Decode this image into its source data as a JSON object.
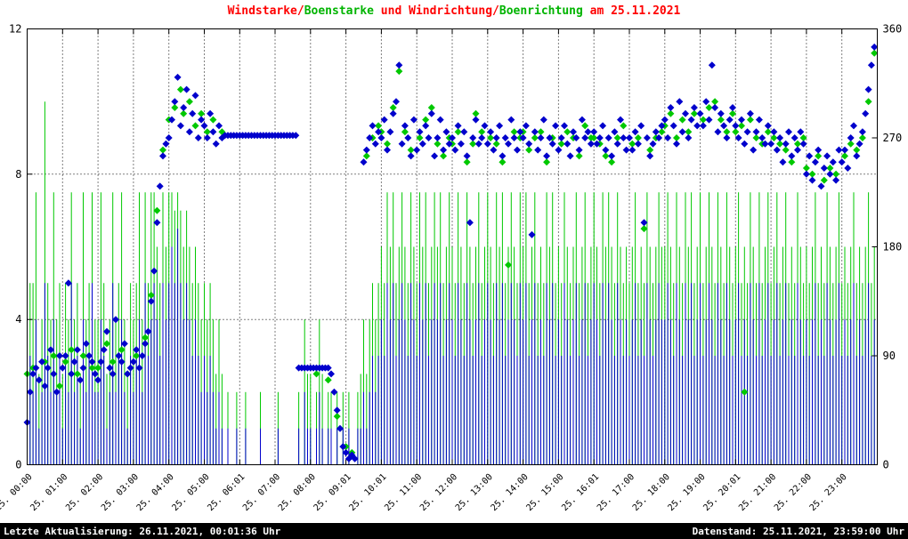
{
  "title_segments": [
    {
      "text": "Windstarke/",
      "color": "#ff0000"
    },
    {
      "text": "Boenstarke",
      "color": "#00b400"
    },
    {
      "text": " und Windrichtung/",
      "color": "#ff0000"
    },
    {
      "text": "Boenrichtung",
      "color": "#00b400"
    },
    {
      "text": " am 25.11.2021",
      "color": "#ff0000"
    }
  ],
  "footer": {
    "left": "Letzte Aktualisierung: 26.11.2021, 00:01:36 Uhr",
    "right": "Datenstand: 25.11.2021, 23:59:00 Uhr"
  },
  "chart_data": {
    "type": "scatter",
    "title": "Windstarke/Boenstarke und Windrichtung/Boenrichtung am 25.11.2021",
    "x_start_min": 0,
    "x_step_min": 5,
    "x_axis": {
      "hours": 24,
      "tick_labels": [
        "25. 00:00",
        "25. 01:00",
        "25. 02:00",
        "25. 03:00",
        "25. 04:00",
        "25. 05:00",
        "25. 06:01",
        "25. 07:00",
        "25. 08:00",
        "25. 09:01",
        "25. 10:01",
        "25. 11:00",
        "25. 12:00",
        "25. 13:00",
        "25. 14:00",
        "25. 15:00",
        "25. 16:01",
        "25. 17:00",
        "25. 18:00",
        "25. 19:00",
        "25. 20:01",
        "25. 21:00",
        "25. 22:00",
        "25. 23:00"
      ]
    },
    "left_axis": {
      "range": [
        0,
        12
      ],
      "ticks": [
        0,
        4,
        8,
        12
      ]
    },
    "right_axis": {
      "range": [
        0,
        360
      ],
      "ticks": [
        0,
        90,
        180,
        270,
        360
      ]
    },
    "grid": {
      "h_lines_left": [
        4,
        8
      ],
      "v_lines_every_hour": true
    },
    "legend_position": "none",
    "series": [
      {
        "name": "Boenstarke",
        "render": "impulse",
        "axis": "left",
        "color": "#00c800",
        "values": [
          4,
          5,
          5,
          7.5,
          2.5,
          4,
          10,
          5,
          4,
          7.5,
          4,
          5,
          2.5,
          5,
          4,
          7.5,
          4,
          5,
          2.5,
          7.5,
          4,
          5,
          7.5,
          4,
          4,
          7.5,
          5,
          2.5,
          4,
          7.5,
          4,
          5,
          7.5,
          4,
          2.5,
          5,
          4,
          5,
          7.5,
          4,
          7.5,
          5,
          7.5,
          7.5,
          6,
          5,
          7.5,
          6,
          7.5,
          7.5,
          7,
          7.5,
          7,
          6,
          7,
          6,
          5,
          6,
          5,
          4,
          5,
          4,
          5,
          4,
          2.5,
          4,
          2.5,
          0,
          2,
          0,
          0,
          2,
          0,
          0,
          2,
          0,
          0,
          0,
          0,
          2,
          0,
          0,
          0,
          0,
          0,
          2,
          0,
          0,
          0,
          0,
          0,
          0,
          2,
          0,
          4,
          2.5,
          2.5,
          0,
          2,
          4,
          2.5,
          0,
          2,
          2,
          0,
          2,
          0,
          2,
          0,
          2,
          0,
          0,
          2,
          2.5,
          4,
          2.5,
          4,
          5,
          4,
          5,
          6,
          5,
          7.5,
          6,
          7.5,
          5,
          6,
          7.5,
          6,
          5,
          7.5,
          6,
          5,
          7.5,
          6,
          7.5,
          5,
          6,
          7.5,
          6,
          7.5,
          5,
          6,
          7.5,
          6,
          5,
          7.5,
          6,
          5,
          7.5,
          6,
          5,
          6,
          7.5,
          5,
          6,
          7.5,
          6,
          5,
          7.5,
          6,
          7.5,
          5,
          6,
          7.5,
          6,
          5,
          7.5,
          6,
          7.5,
          5,
          6,
          7.5,
          5,
          6,
          5,
          7.5,
          6,
          7.5,
          5,
          6,
          5,
          7.5,
          6,
          5,
          6,
          7.5,
          5,
          6,
          7.5,
          5,
          6,
          7.5,
          6,
          5,
          7.5,
          6,
          7.5,
          6,
          5,
          7.5,
          6,
          5,
          6,
          5,
          6,
          7.5,
          5,
          6,
          5,
          7.5,
          6,
          5,
          6,
          7.5,
          6,
          6,
          7.5,
          6,
          5,
          7.5,
          6,
          5,
          7.5,
          6,
          7.5,
          5,
          6,
          7.5,
          5,
          6,
          7.5,
          6,
          5,
          7.5,
          6,
          5,
          7.5,
          6,
          5,
          6,
          7.5,
          5,
          6,
          5,
          7.5,
          6,
          5,
          7.5,
          5,
          6,
          7.5,
          5,
          6,
          7.5,
          5,
          6,
          7.5,
          5,
          6,
          5,
          7.5,
          6,
          5,
          6,
          5,
          6,
          7.5,
          5,
          6,
          5,
          7.5,
          6,
          5,
          6,
          7.5,
          5,
          6,
          5,
          6,
          7.5,
          5,
          6,
          5,
          6,
          7.5,
          5,
          6
        ]
      },
      {
        "name": "Windstarke",
        "render": "impulse",
        "axis": "left",
        "color": "#0000cc",
        "values": [
          2,
          3,
          2,
          4,
          1,
          2,
          5,
          3,
          2,
          4,
          2,
          3,
          1,
          3,
          2,
          5,
          2,
          3,
          1,
          4,
          2,
          3,
          5,
          2,
          2,
          4,
          3,
          1,
          2,
          5,
          2,
          3,
          4,
          2,
          1,
          3,
          2,
          3,
          4,
          2,
          5,
          3,
          4,
          5,
          4,
          3,
          5,
          4,
          5,
          6,
          5,
          6.5,
          5,
          4,
          5,
          4,
          3,
          4,
          3,
          2,
          3,
          2,
          3,
          2,
          1,
          2,
          1,
          0,
          1,
          0,
          0,
          1,
          0,
          0,
          1,
          0,
          0,
          0,
          0,
          1,
          0,
          0,
          0,
          0,
          0,
          1,
          0,
          0,
          0,
          0,
          0,
          0,
          1,
          0,
          2,
          1,
          1,
          0,
          1,
          2,
          1,
          0,
          1,
          1,
          0,
          1,
          0,
          1,
          0,
          1,
          0,
          0,
          1,
          1,
          2,
          1,
          2,
          3,
          2,
          3,
          4,
          3,
          5,
          4,
          5,
          3,
          4,
          5,
          4,
          3,
          5,
          4,
          3,
          5,
          4,
          5,
          3,
          4,
          5,
          4,
          5,
          3,
          4,
          5,
          4,
          3,
          5,
          4,
          3,
          5,
          4,
          3,
          4,
          5,
          3,
          4,
          5,
          4,
          3,
          5,
          4,
          5,
          3,
          4,
          5,
          4,
          3,
          5,
          4,
          5,
          3,
          4,
          5,
          3,
          4,
          3,
          5,
          4,
          5,
          3,
          4,
          3,
          5,
          4,
          3,
          4,
          5,
          3,
          4,
          5,
          3,
          4,
          5,
          4,
          3,
          5,
          4,
          5,
          4,
          3,
          5,
          4,
          3,
          4,
          3,
          4,
          5,
          3,
          4,
          3,
          5,
          4,
          3,
          4,
          5,
          4,
          4,
          5,
          4,
          3,
          5,
          4,
          3,
          5,
          4,
          5,
          3,
          4,
          5,
          3,
          4,
          5,
          4,
          3,
          5,
          4,
          3,
          5,
          4,
          3,
          4,
          5,
          3,
          4,
          3,
          5,
          4,
          3,
          5,
          3,
          4,
          5,
          3,
          4,
          5,
          3,
          4,
          5,
          3,
          4,
          3,
          5,
          4,
          3,
          4,
          3,
          4,
          5,
          3,
          4,
          3,
          5,
          4,
          3,
          4,
          5,
          3,
          4,
          3,
          4,
          5,
          3,
          4,
          3,
          4,
          5,
          3,
          4
        ]
      },
      {
        "name": "Boenrichtung",
        "render": "points",
        "marker": "diamond",
        "axis": "right",
        "color": "#00c800",
        "values": [
          75,
          null,
          80,
          null,
          70,
          null,
          85,
          null,
          null,
          90,
          null,
          65,
          null,
          85,
          null,
          95,
          null,
          75,
          null,
          90,
          null,
          null,
          80,
          null,
          80,
          null,
          null,
          100,
          null,
          85,
          null,
          null,
          95,
          null,
          75,
          null,
          null,
          90,
          null,
          null,
          105,
          null,
          140,
          null,
          210,
          null,
          260,
          null,
          285,
          null,
          295,
          null,
          310,
          290,
          null,
          300,
          null,
          280,
          null,
          290,
          null,
          275,
          null,
          285,
          null,
          null,
          275,
          null,
          null,
          null,
          null,
          null,
          null,
          null,
          null,
          null,
          null,
          null,
          null,
          null,
          null,
          null,
          null,
          null,
          null,
          null,
          null,
          null,
          null,
          null,
          null,
          null,
          null,
          null,
          null,
          null,
          null,
          null,
          75,
          null,
          null,
          null,
          70,
          null,
          null,
          40,
          null,
          null,
          15,
          null,
          10,
          null,
          null,
          null,
          null,
          255,
          null,
          270,
          null,
          280,
          275,
          null,
          265,
          null,
          295,
          null,
          325,
          null,
          275,
          null,
          260,
          null,
          null,
          270,
          null,
          285,
          null,
          295,
          null,
          265,
          null,
          255,
          null,
          270,
          265,
          null,
          275,
          null,
          null,
          250,
          null,
          265,
          290,
          null,
          275,
          null,
          null,
          270,
          null,
          265,
          null,
          250,
          null,
          165,
          null,
          275,
          null,
          270,
          275,
          null,
          260,
          null,
          270,
          null,
          275,
          null,
          250,
          null,
          270,
          null,
          null,
          265,
          null,
          275,
          null,
          270,
          null,
          255,
          null,
          280,
          null,
          270,
          270,
          null,
          265,
          null,
          255,
          null,
          250,
          null,
          270,
          null,
          280,
          null,
          null,
          265,
          null,
          270,
          null,
          195,
          null,
          260,
          null,
          270,
          null,
          275,
          280,
          null,
          290,
          null,
          270,
          null,
          285,
          null,
          275,
          null,
          290,
          null,
          null,
          285,
          null,
          295,
          null,
          300,
          null,
          285,
          null,
          275,
          null,
          290,
          275,
          null,
          280,
          60,
          null,
          285,
          null,
          270,
          null,
          265,
          null,
          275,
          null,
          270,
          null,
          265,
          null,
          260,
          null,
          250,
          null,
          265,
          null,
          270,
          245,
          null,
          240,
          null,
          255,
          null,
          235,
          null,
          245,
          null,
          240,
          null,
          null,
          255,
          null,
          265,
          null,
          260,
          null,
          270,
          null,
          300,
          null,
          340
        ]
      },
      {
        "name": "Windrichtung",
        "render": "points",
        "marker": "diamond",
        "axis": "right",
        "color": "#0000cc",
        "values": [
          35,
          60,
          75,
          80,
          70,
          85,
          65,
          80,
          95,
          75,
          60,
          90,
          80,
          90,
          150,
          75,
          85,
          95,
          70,
          80,
          100,
          90,
          85,
          75,
          70,
          85,
          95,
          110,
          80,
          75,
          120,
          90,
          85,
          100,
          75,
          80,
          85,
          95,
          80,
          90,
          100,
          110,
          135,
          160,
          200,
          230,
          255,
          265,
          270,
          285,
          300,
          320,
          280,
          295,
          310,
          275,
          290,
          305,
          270,
          285,
          280,
          270,
          290,
          275,
          265,
          280,
          270,
          272,
          272,
          272,
          272,
          272,
          272,
          272,
          272,
          272,
          272,
          272,
          272,
          272,
          272,
          272,
          272,
          272,
          272,
          272,
          272,
          272,
          272,
          272,
          272,
          272,
          80,
          80,
          80,
          80,
          80,
          80,
          80,
          80,
          80,
          80,
          80,
          75,
          60,
          45,
          30,
          15,
          10,
          5,
          8,
          5,
          null,
          null,
          250,
          260,
          270,
          280,
          265,
          275,
          270,
          285,
          260,
          275,
          290,
          300,
          330,
          265,
          280,
          270,
          255,
          285,
          260,
          275,
          265,
          280,
          270,
          290,
          255,
          270,
          285,
          260,
          275,
          265,
          270,
          260,
          280,
          265,
          275,
          255,
          200,
          270,
          285,
          265,
          270,
          280,
          265,
          275,
          260,
          270,
          280,
          255,
          270,
          265,
          285,
          270,
          260,
          275,
          270,
          280,
          265,
          190,
          275,
          260,
          270,
          285,
          255,
          270,
          265,
          280,
          260,
          270,
          280,
          265,
          255,
          275,
          270,
          260,
          285,
          270,
          275,
          265,
          275,
          265,
          270,
          280,
          260,
          270,
          255,
          275,
          265,
          285,
          270,
          260,
          270,
          260,
          275,
          265,
          280,
          200,
          270,
          255,
          265,
          275,
          270,
          280,
          285,
          270,
          295,
          280,
          265,
          300,
          275,
          290,
          270,
          285,
          295,
          280,
          290,
          280,
          300,
          285,
          330,
          295,
          275,
          290,
          280,
          270,
          285,
          295,
          280,
          270,
          285,
          265,
          275,
          290,
          260,
          275,
          285,
          270,
          265,
          280,
          265,
          275,
          260,
          270,
          250,
          265,
          275,
          255,
          270,
          260,
          275,
          265,
          240,
          255,
          235,
          250,
          260,
          230,
          245,
          255,
          240,
          250,
          235,
          260,
          250,
          260,
          245,
          270,
          280,
          255,
          265,
          275,
          290,
          310,
          330,
          345
        ]
      }
    ]
  }
}
